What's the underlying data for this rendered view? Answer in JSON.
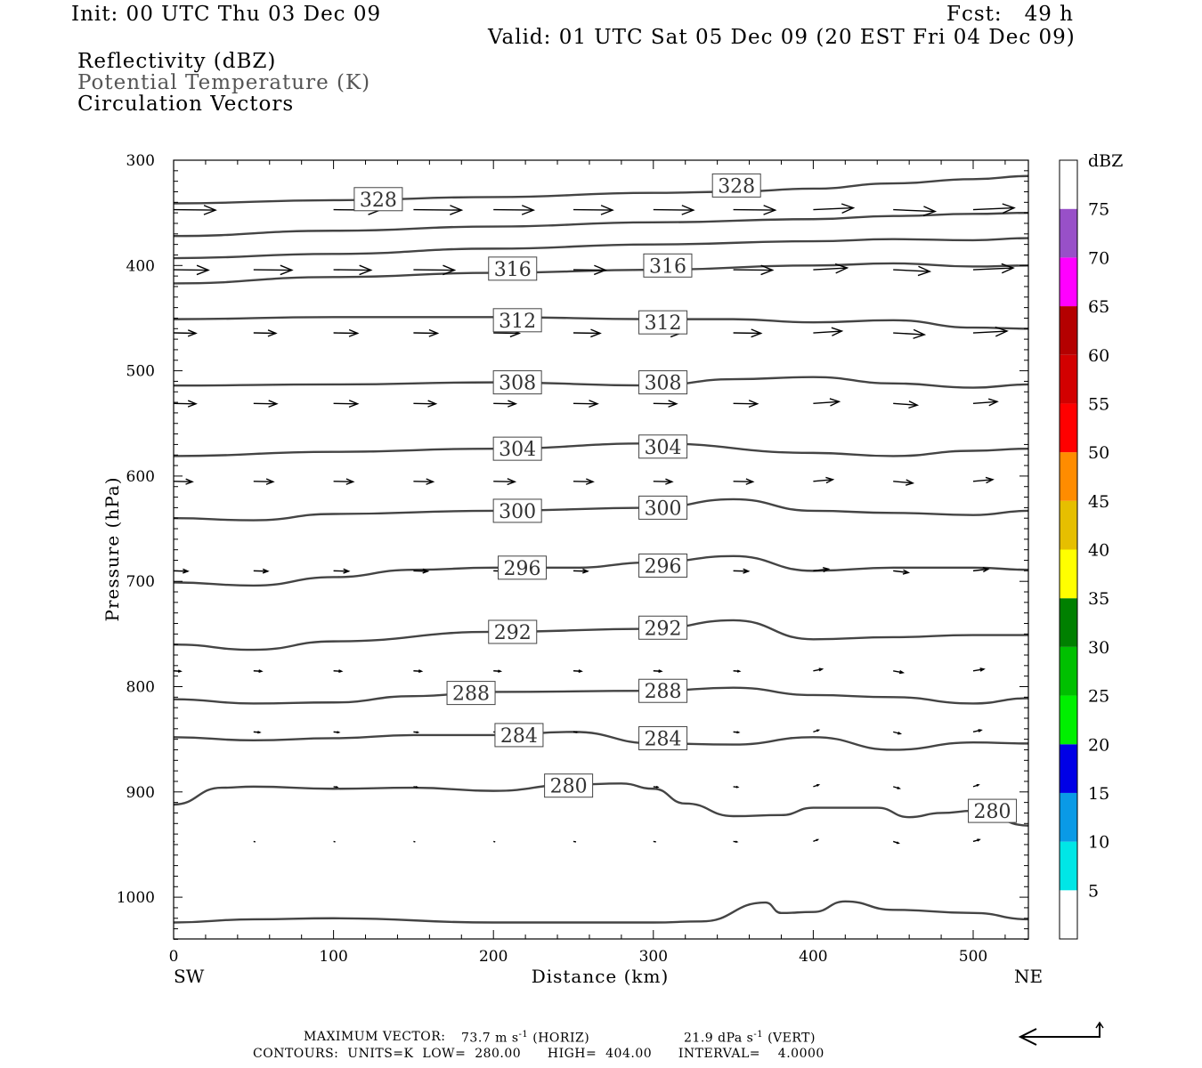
{
  "header": {
    "init": "Init: 00 UTC Thu 03 Dec 09",
    "fcst": "Fcst:   49 h",
    "valid": "Valid: 01 UTC Sat 05 Dec 09 (20 EST Fri 04 Dec 09)",
    "field1": "Reflectivity (dBZ)",
    "field2": "Potential Temperature (K)",
    "field3": "Circulation Vectors"
  },
  "footer": {
    "max_vector_label": "MAXIMUM VECTOR:",
    "max_horiz": "73.7 m s",
    "horiz_unit": "(HORIZ)",
    "max_vert": "21.9 dPa s",
    "vert_unit": "(VERT)",
    "exp": "-1",
    "contours_line": "CONTOURS:  UNITS=K  LOW=  280.00      HIGH=  404.00      INTERVAL=    4.0000"
  },
  "chart_data": {
    "type": "line",
    "xlabel": "Distance (km)",
    "ylabel": "Pressure (hPa)",
    "x_left_label": "SW",
    "x_right_label": "NE",
    "xlim": [
      0,
      535
    ],
    "ylim": [
      300,
      1040
    ],
    "x_ticks": [
      0,
      100,
      200,
      300,
      400,
      500
    ],
    "y_ticks": [
      300,
      400,
      500,
      600,
      700,
      800,
      900,
      1000
    ],
    "series_color": "#444444",
    "isentropes": [
      {
        "theta": 328,
        "x": [
          0,
          100,
          200,
          300,
          350,
          400,
          450,
          500,
          535
        ],
        "p": [
          341,
          338,
          335,
          331,
          330,
          327,
          322,
          318,
          315
        ],
        "labels": [
          [
            128,
            337
          ],
          [
            352,
            324
          ]
        ]
      },
      {
        "theta": 324,
        "x": [
          0,
          100,
          200,
          300,
          400,
          450,
          500,
          535
        ],
        "p": [
          372,
          367,
          363,
          359,
          356,
          353,
          351,
          350
        ]
      },
      {
        "theta": 320,
        "x": [
          0,
          100,
          200,
          300,
          400,
          450,
          500,
          535
        ],
        "p": [
          393,
          389,
          384,
          380,
          377,
          375,
          376,
          374
        ]
      },
      {
        "theta": 316,
        "x": [
          0,
          100,
          200,
          300,
          400,
          450,
          500,
          535
        ],
        "p": [
          417,
          411,
          407,
          404,
          400,
          398,
          401,
          400
        ],
        "labels": [
          [
            212,
            403
          ],
          [
            309,
            400
          ]
        ]
      },
      {
        "theta": 312,
        "x": [
          0,
          100,
          200,
          300,
          350,
          400,
          450,
          500,
          535
        ],
        "p": [
          451,
          449,
          449,
          451,
          451,
          454,
          452,
          459,
          460
        ],
        "labels": [
          [
            215,
            452
          ],
          [
            306,
            454
          ]
        ]
      },
      {
        "theta": 308,
        "x": [
          0,
          100,
          200,
          300,
          350,
          400,
          450,
          500,
          535
        ],
        "p": [
          514,
          513,
          511,
          514,
          508,
          506,
          512,
          516,
          513
        ],
        "labels": [
          [
            215,
            511
          ],
          [
            306,
            511
          ]
        ]
      },
      {
        "theta": 304,
        "x": [
          0,
          100,
          200,
          300,
          400,
          450,
          500,
          535
        ],
        "p": [
          581,
          577,
          574,
          569,
          578,
          581,
          576,
          574
        ],
        "labels": [
          [
            215,
            574
          ],
          [
            306,
            572
          ]
        ]
      },
      {
        "theta": 300,
        "x": [
          0,
          50,
          100,
          200,
          300,
          350,
          400,
          450,
          500,
          535
        ],
        "p": [
          640,
          642,
          636,
          633,
          630,
          622,
          633,
          635,
          637,
          633
        ],
        "labels": [
          [
            215,
            633
          ],
          [
            306,
            630
          ]
        ]
      },
      {
        "theta": 296,
        "x": [
          0,
          50,
          100,
          150,
          200,
          250,
          300,
          350,
          400,
          450,
          500,
          535
        ],
        "p": [
          701,
          704,
          696,
          689,
          687,
          687,
          682,
          676,
          690,
          687,
          687,
          689
        ],
        "labels": [
          [
            218,
            687
          ],
          [
            306,
            685
          ]
        ]
      },
      {
        "theta": 292,
        "x": [
          0,
          50,
          100,
          200,
          300,
          350,
          400,
          450,
          500,
          535
        ],
        "p": [
          760,
          765,
          757,
          748,
          745,
          737,
          755,
          753,
          751,
          751
        ],
        "labels": [
          [
            212,
            748
          ],
          [
            306,
            744
          ]
        ]
      },
      {
        "theta": 288,
        "x": [
          0,
          50,
          100,
          150,
          200,
          300,
          350,
          400,
          450,
          500,
          535
        ],
        "p": [
          812,
          816,
          815,
          809,
          805,
          804,
          801,
          808,
          810,
          816,
          811
        ],
        "labels": [
          [
            186,
            806
          ],
          [
            306,
            804
          ]
        ]
      },
      {
        "theta": 284,
        "x": [
          0,
          50,
          100,
          150,
          200,
          250,
          300,
          350,
          400,
          450,
          500,
          535
        ],
        "p": [
          848,
          851,
          849,
          846,
          846,
          843,
          854,
          855,
          848,
          860,
          853,
          854
        ],
        "labels": [
          [
            216,
            846
          ],
          [
            306,
            849
          ]
        ]
      },
      {
        "theta": 280,
        "x": [
          0,
          30,
          50,
          100,
          150,
          200,
          250,
          280,
          300,
          320,
          350,
          380,
          400,
          440,
          460,
          480,
          500,
          535
        ],
        "p": [
          912,
          896,
          895,
          897,
          896,
          899,
          893,
          892,
          897,
          911,
          923,
          922,
          915,
          915,
          924,
          920,
          918,
          932
        ],
        "labels": [
          [
            247,
            894
          ],
          [
            512,
            918
          ]
        ]
      },
      {
        "theta": 276,
        "x": [
          0,
          50,
          100,
          200,
          300,
          330,
          370,
          380,
          400,
          420,
          450,
          500,
          535
        ],
        "p": [
          1024,
          1021,
          1020,
          1024,
          1024,
          1023,
          1005,
          1015,
          1014,
          1004,
          1012,
          1015,
          1021
        ]
      }
    ],
    "vectors": {
      "rows": [
        {
          "p": 347,
          "y1": 348,
          "items": [
            [
              0,
              47
            ],
            [
              100,
              52
            ],
            [
              150,
              54
            ],
            [
              200,
              45
            ],
            [
              250,
              44
            ],
            [
              300,
              45
            ],
            [
              350,
              47
            ],
            [
              400,
              45
            ],
            [
              450,
              47
            ],
            [
              500,
              46
            ]
          ]
        },
        {
          "p": 404,
          "y1": 404,
          "items": [
            [
              0,
              39
            ],
            [
              50,
              43
            ],
            [
              100,
              42
            ],
            [
              150,
              46
            ],
            [
              200,
              33
            ],
            [
              250,
              36
            ],
            [
              300,
              40
            ],
            [
              350,
              44
            ],
            [
              400,
              38
            ],
            [
              450,
              41
            ],
            [
              500,
              45
            ]
          ]
        },
        {
          "p": 464,
          "y1": 464,
          "items": [
            [
              0,
              25
            ],
            [
              50,
              25
            ],
            [
              100,
              27
            ],
            [
              150,
              27
            ],
            [
              200,
              29
            ],
            [
              250,
              30
            ],
            [
              300,
              30
            ],
            [
              350,
              31
            ],
            [
              400,
              32
            ],
            [
              450,
              35
            ],
            [
              500,
              38
            ]
          ]
        },
        {
          "p": 531,
          "y1": 531,
          "items": [
            [
              0,
              25
            ],
            [
              50,
              26
            ],
            [
              100,
              27
            ],
            [
              150,
              25
            ],
            [
              200,
              25
            ],
            [
              250,
              27
            ],
            [
              300,
              26
            ],
            [
              350,
              27
            ],
            [
              400,
              29
            ],
            [
              450,
              27
            ],
            [
              500,
              27
            ]
          ]
        },
        {
          "p": 605,
          "y1": 605,
          "items": [
            [
              0,
              21
            ],
            [
              50,
              22
            ],
            [
              100,
              22
            ],
            [
              150,
              22
            ],
            [
              200,
              24
            ],
            [
              250,
              22
            ],
            [
              300,
              21
            ],
            [
              350,
              22
            ],
            [
              400,
              22
            ],
            [
              450,
              22
            ],
            [
              500,
              22
            ]
          ]
        },
        {
          "p": 690,
          "y1": 690,
          "items": [
            [
              0,
              16
            ],
            [
              50,
              16
            ],
            [
              100,
              17
            ],
            [
              150,
              16
            ],
            [
              200,
              18
            ],
            [
              250,
              16
            ],
            [
              300,
              15
            ],
            [
              350,
              17
            ],
            [
              400,
              17
            ],
            [
              450,
              17
            ],
            [
              500,
              17
            ]
          ]
        },
        {
          "p": 785,
          "y1": 785,
          "items": [
            [
              0,
              8
            ],
            [
              50,
              9
            ],
            [
              100,
              9
            ],
            [
              150,
              9
            ],
            [
              200,
              8
            ],
            [
              250,
              9
            ],
            [
              300,
              9
            ],
            [
              350,
              7
            ],
            [
              400,
              10
            ],
            [
              450,
              11
            ],
            [
              500,
              12
            ]
          ]
        },
        {
          "p": 843,
          "y1": 843,
          "items": [
            [
              50,
              7
            ],
            [
              100,
              6
            ],
            [
              150,
              5
            ],
            [
              200,
              5
            ],
            [
              250,
              4
            ],
            [
              300,
              5
            ],
            [
              350,
              6
            ],
            [
              400,
              6
            ],
            [
              450,
              8
            ],
            [
              500,
              9
            ]
          ]
        },
        {
          "p": 895,
          "y1": 895,
          "items": [
            [
              100,
              4
            ],
            [
              150,
              4
            ],
            [
              300,
              5
            ],
            [
              350,
              5
            ],
            [
              400,
              6
            ],
            [
              450,
              7
            ],
            [
              500,
              6
            ]
          ]
        },
        {
          "p": 947,
          "y1": 947,
          "items": [
            [
              0,
              1
            ],
            [
              50,
              2
            ],
            [
              100,
              2
            ],
            [
              150,
              2
            ],
            [
              200,
              2
            ],
            [
              250,
              3
            ],
            [
              300,
              3
            ],
            [
              350,
              4
            ],
            [
              400,
              5
            ],
            [
              450,
              6
            ],
            [
              500,
              7
            ]
          ]
        }
      ],
      "max_horiz": 73.7,
      "max_vert": 21.9
    },
    "colorbar": {
      "label": "dBZ",
      "tick_labels": [
        "5",
        "10",
        "15",
        "20",
        "25",
        "30",
        "35",
        "40",
        "45",
        "50",
        "55",
        "60",
        "65",
        "70",
        "75"
      ],
      "colors": [
        "#ffffff",
        "#00e6e6",
        "#0a9ae6",
        "#0000e6",
        "#00f000",
        "#00c000",
        "#008000",
        "#ffff00",
        "#e6bf00",
        "#ff8c00",
        "#ff0000",
        "#d20000",
        "#b40000",
        "#ff00ff",
        "#9850c8",
        "#ffffff"
      ]
    }
  }
}
